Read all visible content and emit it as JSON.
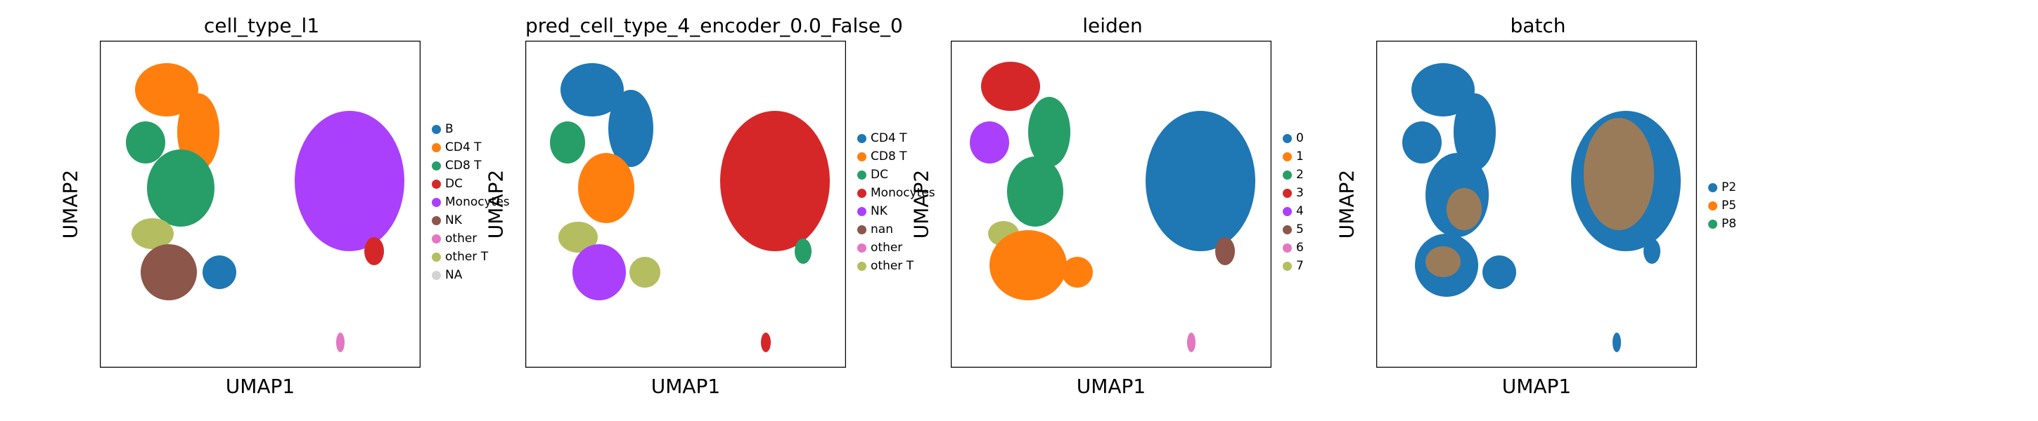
{
  "chart_data": [
    {
      "type": "scatter",
      "title": "cell_type_l1",
      "xlabel": "UMAP1",
      "ylabel": "UMAP2",
      "legend_position": "right",
      "grid": false,
      "legend": [
        {
          "label": "B",
          "color": "#1f77b4"
        },
        {
          "label": "CD4 T",
          "color": "#ff7f0e"
        },
        {
          "label": "CD8 T",
          "color": "#279e68"
        },
        {
          "label": "DC",
          "color": "#d62728"
        },
        {
          "label": "Monocytes",
          "color": "#aa40fc"
        },
        {
          "label": "NK",
          "color": "#8c564b"
        },
        {
          "label": "other",
          "color": "#e377c2"
        },
        {
          "label": "other T",
          "color": "#b5bd61"
        },
        {
          "label": "NA",
          "color": "#d3d3d3"
        }
      ]
    },
    {
      "type": "scatter",
      "title": "pred_cell_type_4_encoder_0.0_False_0",
      "xlabel": "UMAP1",
      "ylabel": "UMAP2",
      "legend_position": "right",
      "grid": false,
      "legend": [
        {
          "label": "CD4 T",
          "color": "#1f77b4"
        },
        {
          "label": "CD8 T",
          "color": "#ff7f0e"
        },
        {
          "label": "DC",
          "color": "#279e68"
        },
        {
          "label": "Monocytes",
          "color": "#d62728"
        },
        {
          "label": "NK",
          "color": "#aa40fc"
        },
        {
          "label": "nan",
          "color": "#8c564b"
        },
        {
          "label": "other",
          "color": "#e377c2"
        },
        {
          "label": "other T",
          "color": "#b5bd61"
        }
      ]
    },
    {
      "type": "scatter",
      "title": "leiden",
      "xlabel": "UMAP1",
      "ylabel": "UMAP2",
      "legend_position": "right",
      "grid": false,
      "legend": [
        {
          "label": "0",
          "color": "#1f77b4"
        },
        {
          "label": "1",
          "color": "#ff7f0e"
        },
        {
          "label": "2",
          "color": "#279e68"
        },
        {
          "label": "3",
          "color": "#d62728"
        },
        {
          "label": "4",
          "color": "#aa40fc"
        },
        {
          "label": "5",
          "color": "#8c564b"
        },
        {
          "label": "6",
          "color": "#e377c2"
        },
        {
          "label": "7",
          "color": "#b5bd61"
        }
      ]
    },
    {
      "type": "scatter",
      "title": "batch",
      "xlabel": "UMAP1",
      "ylabel": "UMAP2",
      "legend_position": "right",
      "grid": false,
      "legend": [
        {
          "label": "P2",
          "color": "#1f77b4"
        },
        {
          "label": "P5",
          "color": "#ff7f0e"
        },
        {
          "label": "P8",
          "color": "#279e68"
        }
      ]
    }
  ]
}
